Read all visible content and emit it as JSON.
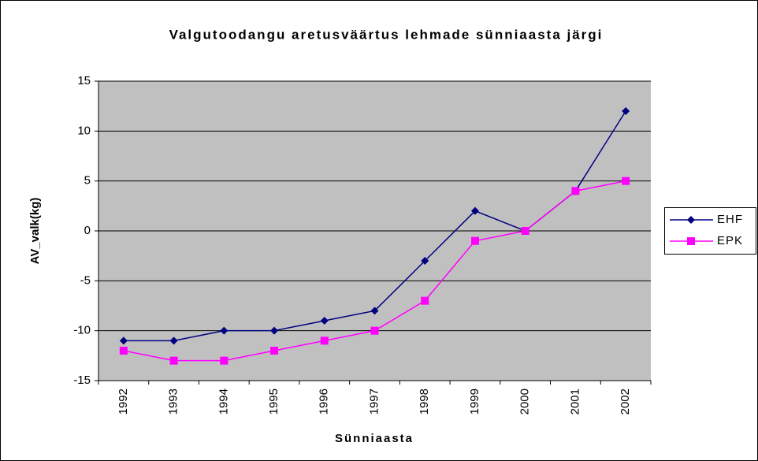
{
  "chart_data": {
    "type": "line",
    "title": "Valgutoodangu aretusväärtus lehmade sünniaasta järgi",
    "xlabel": "Sünniaasta",
    "ylabel": "AV_valk(kg)",
    "categories": [
      "1992",
      "1993",
      "1994",
      "1995",
      "1996",
      "1997",
      "1998",
      "1999",
      "2000",
      "2001",
      "2002"
    ],
    "series": [
      {
        "name": "EHF",
        "color": "#000080",
        "marker": "diamond",
        "values": [
          -11,
          -11,
          -10,
          -10,
          -9,
          -8,
          -3,
          2,
          0,
          4,
          12
        ]
      },
      {
        "name": "EPK",
        "color": "#ff00ff",
        "marker": "square",
        "values": [
          -12,
          -13,
          -13,
          -12,
          -11,
          -10,
          -7,
          -1,
          0,
          4,
          5
        ]
      }
    ],
    "ylim": [
      -15,
      15
    ],
    "yticks": [
      -15,
      -10,
      -5,
      0,
      5,
      10,
      15
    ],
    "grid": true,
    "plot_background": "#c0c0c0",
    "legend": "right"
  }
}
